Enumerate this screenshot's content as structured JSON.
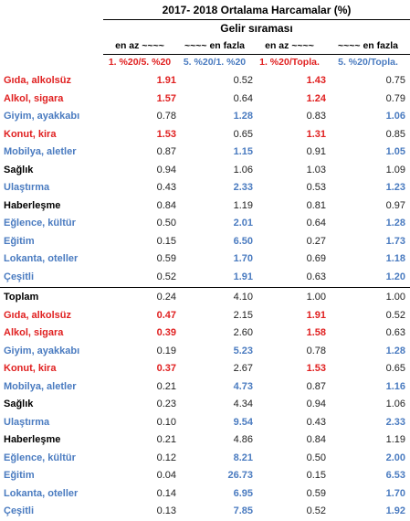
{
  "title": "2017- 2018 Ortalama Harcamalar (%)",
  "subtitle": "Gelir sıraması",
  "colors": {
    "red": "#e02020",
    "blue": "#4a7bc0",
    "black": "#000000",
    "gray": "#222222"
  },
  "col_headers_top": [
    "en az ~~~~",
    "~~~~ en fazla",
    "en az ~~~~",
    "~~~~ en fazla"
  ],
  "col_headers_sub": [
    "1. %20/5. %20",
    "5. %20/1. %20",
    "1. %20/Topla.",
    "5. %20/Topla."
  ],
  "section1": [
    {
      "label": "Gıda, alkolsüz",
      "lc": "red",
      "v": [
        "1.91",
        "0.52",
        "1.43",
        "0.75"
      ],
      "vc": [
        "red",
        "gray",
        "red",
        "gray"
      ],
      "vb": [
        true,
        false,
        true,
        false
      ]
    },
    {
      "label": "Alkol, sigara",
      "lc": "red",
      "v": [
        "1.57",
        "0.64",
        "1.24",
        "0.79"
      ],
      "vc": [
        "red",
        "gray",
        "red",
        "gray"
      ],
      "vb": [
        true,
        false,
        true,
        false
      ]
    },
    {
      "label": "Giyim, ayakkabı",
      "lc": "blue",
      "v": [
        "0.78",
        "1.28",
        "0.83",
        "1.06"
      ],
      "vc": [
        "gray",
        "blue",
        "gray",
        "blue"
      ],
      "vb": [
        false,
        true,
        false,
        true
      ]
    },
    {
      "label": "Konut, kira",
      "lc": "red",
      "v": [
        "1.53",
        "0.65",
        "1.31",
        "0.85"
      ],
      "vc": [
        "red",
        "gray",
        "red",
        "gray"
      ],
      "vb": [
        true,
        false,
        true,
        false
      ]
    },
    {
      "label": "Mobilya, aletler",
      "lc": "blue",
      "v": [
        "0.87",
        "1.15",
        "0.91",
        "1.05"
      ],
      "vc": [
        "gray",
        "blue",
        "gray",
        "blue"
      ],
      "vb": [
        false,
        true,
        false,
        true
      ]
    },
    {
      "label": "Sağlık",
      "lc": "black",
      "v": [
        "0.94",
        "1.06",
        "1.03",
        "1.09"
      ],
      "vc": [
        "gray",
        "gray",
        "gray",
        "gray"
      ],
      "vb": [
        false,
        false,
        false,
        false
      ]
    },
    {
      "label": "Ulaştırma",
      "lc": "blue",
      "v": [
        "0.43",
        "2.33",
        "0.53",
        "1.23"
      ],
      "vc": [
        "gray",
        "blue",
        "gray",
        "blue"
      ],
      "vb": [
        false,
        true,
        false,
        true
      ]
    },
    {
      "label": "Haberleşme",
      "lc": "black",
      "v": [
        "0.84",
        "1.19",
        "0.81",
        "0.97"
      ],
      "vc": [
        "gray",
        "gray",
        "gray",
        "gray"
      ],
      "vb": [
        false,
        false,
        false,
        false
      ]
    },
    {
      "label": "Eğlence, kültür",
      "lc": "blue",
      "v": [
        "0.50",
        "2.01",
        "0.64",
        "1.28"
      ],
      "vc": [
        "gray",
        "blue",
        "gray",
        "blue"
      ],
      "vb": [
        false,
        true,
        false,
        true
      ]
    },
    {
      "label": "Eğitim",
      "lc": "blue",
      "v": [
        "0.15",
        "6.50",
        "0.27",
        "1.73"
      ],
      "vc": [
        "gray",
        "blue",
        "gray",
        "blue"
      ],
      "vb": [
        false,
        true,
        false,
        true
      ]
    },
    {
      "label": "Lokanta, oteller",
      "lc": "blue",
      "v": [
        "0.59",
        "1.70",
        "0.69",
        "1.18"
      ],
      "vc": [
        "gray",
        "blue",
        "gray",
        "blue"
      ],
      "vb": [
        false,
        true,
        false,
        true
      ]
    },
    {
      "label": "Çeşitli",
      "lc": "blue",
      "v": [
        "0.52",
        "1.91",
        "0.63",
        "1.20"
      ],
      "vc": [
        "gray",
        "blue",
        "gray",
        "blue"
      ],
      "vb": [
        false,
        true,
        false,
        true
      ]
    }
  ],
  "section2": [
    {
      "label": "Toplam",
      "lc": "black",
      "v": [
        "0.24",
        "4.10",
        "1.00",
        "1.00"
      ],
      "vc": [
        "gray",
        "gray",
        "gray",
        "gray"
      ],
      "vb": [
        false,
        false,
        false,
        false
      ]
    },
    {
      "label": "Gıda, alkolsüz",
      "lc": "red",
      "v": [
        "0.47",
        "2.15",
        "1.91",
        "0.52"
      ],
      "vc": [
        "red",
        "gray",
        "red",
        "gray"
      ],
      "vb": [
        true,
        false,
        true,
        false
      ]
    },
    {
      "label": "Alkol, sigara",
      "lc": "red",
      "v": [
        "0.39",
        "2.60",
        "1.58",
        "0.63"
      ],
      "vc": [
        "red",
        "gray",
        "red",
        "gray"
      ],
      "vb": [
        true,
        false,
        true,
        false
      ]
    },
    {
      "label": "Giyim, ayakkabı",
      "lc": "blue",
      "v": [
        "0.19",
        "5.23",
        "0.78",
        "1.28"
      ],
      "vc": [
        "gray",
        "blue",
        "gray",
        "blue"
      ],
      "vb": [
        false,
        true,
        false,
        true
      ]
    },
    {
      "label": "Konut, kira",
      "lc": "red",
      "v": [
        "0.37",
        "2.67",
        "1.53",
        "0.65"
      ],
      "vc": [
        "red",
        "gray",
        "red",
        "gray"
      ],
      "vb": [
        true,
        false,
        true,
        false
      ]
    },
    {
      "label": "Mobilya, aletler",
      "lc": "blue",
      "v": [
        "0.21",
        "4.73",
        "0.87",
        "1.16"
      ],
      "vc": [
        "gray",
        "blue",
        "gray",
        "blue"
      ],
      "vb": [
        false,
        true,
        false,
        true
      ]
    },
    {
      "label": "Sağlık",
      "lc": "black",
      "v": [
        "0.23",
        "4.34",
        "0.94",
        "1.06"
      ],
      "vc": [
        "gray",
        "gray",
        "gray",
        "gray"
      ],
      "vb": [
        false,
        false,
        false,
        false
      ]
    },
    {
      "label": "Ulaştırma",
      "lc": "blue",
      "v": [
        "0.10",
        "9.54",
        "0.43",
        "2.33"
      ],
      "vc": [
        "gray",
        "blue",
        "gray",
        "blue"
      ],
      "vb": [
        false,
        true,
        false,
        true
      ]
    },
    {
      "label": "Haberleşme",
      "lc": "black",
      "v": [
        "0.21",
        "4.86",
        "0.84",
        "1.19"
      ],
      "vc": [
        "gray",
        "gray",
        "gray",
        "gray"
      ],
      "vb": [
        false,
        false,
        false,
        false
      ]
    },
    {
      "label": "Eğlence, kültür",
      "lc": "blue",
      "v": [
        "0.12",
        "8.21",
        "0.50",
        "2.00"
      ],
      "vc": [
        "gray",
        "blue",
        "gray",
        "blue"
      ],
      "vb": [
        false,
        true,
        false,
        true
      ]
    },
    {
      "label": "Eğitim",
      "lc": "blue",
      "v": [
        "0.04",
        "26.73",
        "0.15",
        "6.53"
      ],
      "vc": [
        "gray",
        "blue",
        "gray",
        "blue"
      ],
      "vb": [
        false,
        true,
        false,
        true
      ]
    },
    {
      "label": "Lokanta, oteller",
      "lc": "blue",
      "v": [
        "0.14",
        "6.95",
        "0.59",
        "1.70"
      ],
      "vc": [
        "gray",
        "blue",
        "gray",
        "blue"
      ],
      "vb": [
        false,
        true,
        false,
        true
      ]
    },
    {
      "label": "Çeşitli",
      "lc": "blue",
      "v": [
        "0.13",
        "7.85",
        "0.52",
        "1.92"
      ],
      "vc": [
        "gray",
        "blue",
        "gray",
        "blue"
      ],
      "vb": [
        false,
        true,
        false,
        true
      ]
    }
  ]
}
